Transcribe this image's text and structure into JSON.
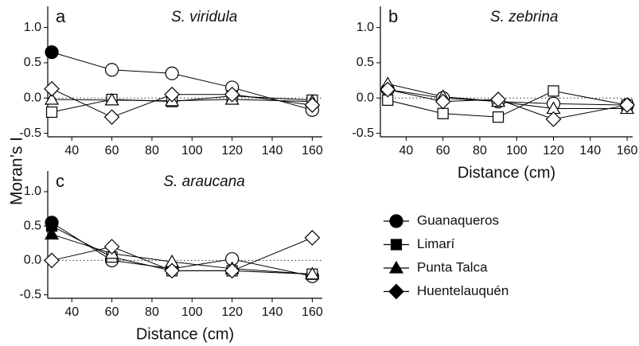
{
  "y_label": "Moran’s I",
  "chart_data": [
    {
      "type": "line",
      "letter": "a",
      "title": "S. viridula",
      "x": [
        30,
        60,
        90,
        120,
        160
      ],
      "xlim": [
        28,
        165
      ],
      "xticks": [
        40,
        60,
        80,
        100,
        120,
        140,
        160
      ],
      "ylim": [
        -0.55,
        1.3
      ],
      "yticks": [
        -0.5,
        {
          "value": 0,
          "label": "0.0"
        },
        0.5,
        {
          "value": 1,
          "label": "1.0"
        }
      ],
      "series": [
        {
          "name": "Guanaqueros",
          "marker": "circle",
          "color": "#000000",
          "values": [
            0.65,
            0.4,
            0.35,
            0.15,
            -0.17
          ],
          "filled": [
            true,
            false,
            false,
            false,
            false
          ]
        },
        {
          "name": "Limarí",
          "marker": "square",
          "color": "#000000",
          "values": [
            -0.2,
            -0.02,
            -0.05,
            0.03,
            -0.03
          ],
          "filled": [
            false,
            false,
            false,
            false,
            false
          ]
        },
        {
          "name": "Punta Talca",
          "marker": "triangle",
          "color": "#000000",
          "values": [
            -0.02,
            -0.03,
            -0.04,
            -0.02,
            -0.05
          ],
          "filled": [
            false,
            false,
            false,
            false,
            false
          ]
        },
        {
          "name": "Huentelauquén",
          "marker": "diamond",
          "color": "#000000",
          "values": [
            0.13,
            -0.27,
            0.05,
            0.05,
            -0.1
          ],
          "filled": [
            false,
            false,
            false,
            false,
            false
          ]
        }
      ]
    },
    {
      "type": "line",
      "letter": "b",
      "title": "S. zebrina",
      "x_label": "Distance (cm)",
      "x": [
        30,
        60,
        90,
        120,
        160
      ],
      "xlim": [
        26,
        163
      ],
      "xticks": [
        40,
        60,
        80,
        100,
        120,
        140,
        160
      ],
      "ylim": [
        -0.55,
        1.3
      ],
      "yticks": [
        -0.5,
        {
          "value": 0,
          "label": "0.0"
        },
        0.5,
        {
          "value": 1,
          "label": "1.0"
        }
      ],
      "series": [
        {
          "name": "Guanaqueros",
          "marker": "circle",
          "color": "#000000",
          "values": [
            0.12,
            0.0,
            -0.05,
            -0.08,
            -0.1
          ],
          "filled": [
            false,
            false,
            false,
            false,
            false
          ]
        },
        {
          "name": "Limarí",
          "marker": "square",
          "color": "#000000",
          "values": [
            -0.03,
            -0.22,
            -0.27,
            0.1,
            -0.1
          ],
          "filled": [
            false,
            false,
            false,
            false,
            false
          ]
        },
        {
          "name": "Punta Talca",
          "marker": "triangle",
          "color": "#000000",
          "values": [
            0.2,
            0.02,
            -0.05,
            -0.15,
            -0.15
          ],
          "filled": [
            false,
            false,
            false,
            false,
            false
          ]
        },
        {
          "name": "Huentelauquén",
          "marker": "diamond",
          "color": "#000000",
          "values": [
            0.12,
            -0.05,
            -0.02,
            -0.3,
            -0.1
          ],
          "filled": [
            false,
            false,
            false,
            false,
            false
          ]
        }
      ]
    },
    {
      "type": "line",
      "letter": "c",
      "title": "S. araucana",
      "x_label": "Distance (cm)",
      "x": [
        30,
        60,
        90,
        120,
        160
      ],
      "xlim": [
        28,
        165
      ],
      "xticks": [
        40,
        60,
        80,
        100,
        120,
        140,
        160
      ],
      "ylim": [
        -0.55,
        1.3
      ],
      "yticks": [
        -0.5,
        {
          "value": 0,
          "label": "0.0"
        },
        0.5,
        {
          "value": 1,
          "label": "1.0"
        }
      ],
      "series": [
        {
          "name": "Guanaqueros",
          "marker": "circle",
          "color": "#000000",
          "values": [
            0.55,
            0.0,
            -0.12,
            0.02,
            -0.23
          ],
          "filled": [
            true,
            false,
            false,
            false,
            false
          ]
        },
        {
          "name": "Limarí",
          "marker": "square",
          "color": "#000000",
          "values": [
            0.5,
            0.05,
            -0.15,
            -0.15,
            -0.2
          ],
          "filled": [
            true,
            false,
            false,
            false,
            false
          ]
        },
        {
          "name": "Punta Talca",
          "marker": "triangle",
          "color": "#000000",
          "values": [
            0.38,
            0.1,
            -0.02,
            -0.12,
            -0.2
          ],
          "filled": [
            true,
            false,
            false,
            false,
            false
          ]
        },
        {
          "name": "Huentelauquén",
          "marker": "diamond",
          "color": "#000000",
          "values": [
            0.0,
            0.2,
            -0.15,
            -0.15,
            0.33
          ],
          "filled": [
            false,
            false,
            false,
            false,
            false
          ]
        }
      ]
    }
  ]
}
